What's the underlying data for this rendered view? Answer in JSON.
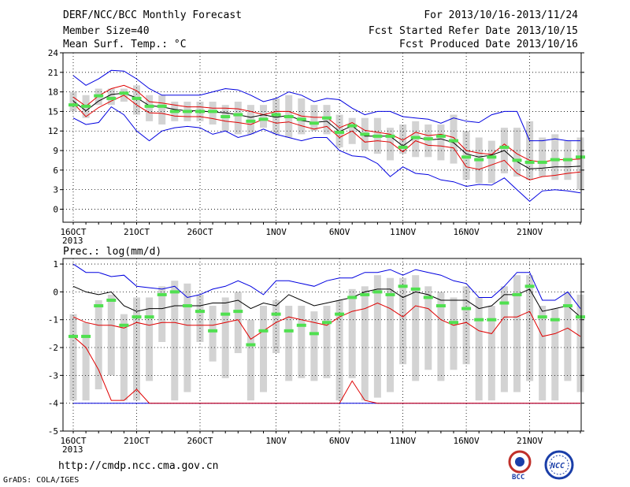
{
  "header": {
    "left_lines": [
      "DERF/NCC/BCC Monthly Forecast",
      "Member Size=40",
      "Mean Surf. Temp.: °C"
    ],
    "right_lines": [
      "For 2013/10/16-2013/11/24",
      "Fcst Started Refer Date 2013/10/15",
      "Fcst Produced Date 2013/10/16"
    ]
  },
  "footer": {
    "url": "http://cmdp.ncc.cma.gov.cn",
    "credit": "GrADS: COLA/IGES"
  },
  "logos": [
    {
      "name": "bcc-logo",
      "text": "BCC",
      "color": "#c0302a"
    },
    {
      "name": "ncc-logo",
      "text": "NCC",
      "color": "#1a3ea8"
    }
  ],
  "colors": {
    "box": "#d3d3d3",
    "median": "#50e050",
    "mean": "#000000",
    "band": "#e00000",
    "extreme": "#0000e0",
    "grid": "#000000"
  },
  "chart_data": [
    {
      "type": "line",
      "title": "Mean Surf. Temp.: °C",
      "ylim": [
        -2,
        24
      ],
      "yticks": [
        0,
        3,
        6,
        9,
        12,
        15,
        18,
        21,
        24
      ],
      "xtick_labels": [
        {
          "day": 0,
          "label": "16OCT",
          "sub": "2013"
        },
        {
          "day": 5,
          "label": "21OCT"
        },
        {
          "day": 10,
          "label": "26OCT"
        },
        {
          "day": 16,
          "label": "1NOV"
        },
        {
          "day": 21,
          "label": "6NOV"
        },
        {
          "day": 26,
          "label": "11NOV"
        },
        {
          "day": 31,
          "label": "16NOV"
        },
        {
          "day": 36,
          "label": "21NOV"
        }
      ],
      "days": 40,
      "series": [
        {
          "role": "max",
          "values": [
            20.5,
            19,
            20,
            21.3,
            21.2,
            20,
            18.5,
            17.5,
            17.5,
            17.5,
            17.5,
            18,
            18.5,
            18.3,
            17.5,
            16.5,
            17,
            18,
            17.5,
            16.5,
            17,
            16.8,
            15.5,
            14.5,
            15,
            15,
            14.2,
            14,
            13.8,
            13.2,
            14,
            13.5,
            13.3,
            14.5,
            15,
            15,
            10.5,
            10.5,
            10.8,
            10.5,
            10.5
          ]
        },
        {
          "role": "upper",
          "values": [
            17.2,
            15.8,
            17.4,
            18.5,
            19,
            18.2,
            16.5,
            16.3,
            16,
            15.7,
            15.7,
            15.5,
            15.5,
            15.4,
            15,
            14.5,
            15,
            15,
            14.3,
            14.1,
            14.1,
            12.5,
            13.3,
            12.1,
            11.8,
            11.5,
            10.6,
            11.8,
            11.3,
            11.5,
            11,
            9,
            8.6,
            8.4,
            10,
            8.5,
            7.5,
            7.2,
            7.6,
            7.6,
            7.7
          ]
        },
        {
          "role": "mean",
          "values": [
            16.6,
            15.1,
            16.6,
            17.6,
            17.8,
            17.1,
            15.9,
            15.7,
            15.3,
            15.1,
            15.1,
            14.9,
            14.8,
            14.5,
            14.1,
            14.5,
            14.1,
            14.4,
            13.6,
            13.3,
            13.5,
            11.9,
            12.8,
            11.2,
            11.2,
            11.2,
            9.7,
            11.1,
            10.6,
            10.8,
            10.2,
            8.5,
            8,
            8.3,
            9,
            7.3,
            6.2,
            6.3,
            6.5,
            6.5,
            6.6
          ]
        },
        {
          "role": "lower",
          "values": [
            16.3,
            14.2,
            15.6,
            16.6,
            17.5,
            16,
            14.8,
            14.7,
            14.3,
            14.2,
            14.2,
            13.9,
            13.5,
            13.3,
            13,
            13.8,
            13.2,
            13.4,
            12.8,
            12.3,
            12.7,
            11,
            12,
            10.3,
            10.5,
            10.3,
            8.8,
            10.5,
            9.8,
            9.7,
            9.4,
            6.5,
            6.1,
            6.8,
            7.5,
            5.5,
            4.5,
            5,
            5.2,
            5.5,
            5.7
          ]
        },
        {
          "role": "min",
          "values": [
            14,
            13,
            13.3,
            15.7,
            14.5,
            12,
            10.5,
            12,
            12.5,
            12.7,
            12.5,
            11.5,
            12,
            11,
            11.5,
            12.3,
            11.5,
            11,
            10.5,
            11,
            11,
            9,
            8.2,
            8,
            7,
            5,
            6.5,
            5.5,
            5.3,
            4.5,
            4.2,
            3.5,
            3.8,
            3.7,
            4.8,
            3,
            1.2,
            2.8,
            3,
            2.8,
            2.5
          ]
        },
        {
          "role": "median",
          "values": [
            16,
            15.8,
            17.4,
            17,
            17.8,
            17,
            15.8,
            15.8,
            15,
            15,
            15,
            15,
            14.2,
            14.5,
            13.5,
            13.8,
            14.5,
            14.2,
            13.8,
            13.2,
            14,
            11.8,
            12.8,
            11.5,
            11.2,
            11.2,
            9.5,
            11,
            10.8,
            11.2,
            10.5,
            8,
            7.6,
            8,
            9.5,
            7.5,
            7.2,
            7.2,
            7.6,
            7.6,
            8
          ]
        },
        {
          "role": "box_hi",
          "values": [
            18,
            17.5,
            18.5,
            18.5,
            18.5,
            19,
            17.5,
            17.5,
            16.5,
            16.5,
            16.5,
            16.5,
            16,
            16.5,
            16,
            16,
            17,
            17.5,
            17,
            16,
            16,
            14.5,
            14,
            14,
            14,
            12.5,
            13,
            13.5,
            13,
            13,
            14.5,
            12,
            11,
            10.5,
            12.5,
            12.5,
            13.5,
            11,
            11.5,
            10.5,
            11
          ]
        },
        {
          "role": "box_lo",
          "values": [
            15,
            14,
            16,
            16,
            16.5,
            14.5,
            13.5,
            13,
            13.5,
            13.5,
            13.5,
            13,
            12,
            11.5,
            11.5,
            12.5,
            11.5,
            11,
            11.5,
            12,
            11.5,
            9.5,
            10,
            9,
            8.5,
            7.5,
            8.5,
            8,
            8,
            7.5,
            7,
            4.5,
            4,
            4,
            5.5,
            5,
            4.5,
            5,
            4.5,
            4.5,
            3
          ]
        }
      ]
    },
    {
      "type": "line",
      "title": "Prec.: log(mm/d)",
      "ylim": [
        -5,
        1.2
      ],
      "yticks": [
        -5,
        -4,
        -3,
        -2,
        -1,
        0,
        1
      ],
      "xtick_labels": [
        {
          "day": 0,
          "label": "16OCT",
          "sub": "2013"
        },
        {
          "day": 5,
          "label": "21OCT"
        },
        {
          "day": 10,
          "label": "26OCT"
        },
        {
          "day": 16,
          "label": "1NOV"
        },
        {
          "day": 21,
          "label": "6NOV"
        },
        {
          "day": 26,
          "label": "11NOV"
        },
        {
          "day": 31,
          "label": "16NOV"
        },
        {
          "day": 36,
          "label": "21NOV"
        }
      ],
      "days": 40,
      "series": [
        {
          "role": "max",
          "values": [
            1,
            0.7,
            0.7,
            0.55,
            0.6,
            0.2,
            0.15,
            0.1,
            0.2,
            -0.2,
            -0.1,
            0.1,
            0.2,
            0.4,
            0.2,
            -0.1,
            0.4,
            0.4,
            0.3,
            0.2,
            0.4,
            0.5,
            0.5,
            0.7,
            0.7,
            0.8,
            0.6,
            0.8,
            0.7,
            0.6,
            0.4,
            0.3,
            -0.2,
            -0.2,
            0.2,
            0.7,
            0.7,
            -0.3,
            -0.3,
            0,
            -0.6
          ]
        },
        {
          "role": "mean",
          "values": [
            0.2,
            0,
            -0.1,
            0,
            -0.5,
            -0.7,
            -0.6,
            -0.6,
            -0.5,
            -0.5,
            -0.5,
            -0.4,
            -0.4,
            -0.3,
            -0.6,
            -0.4,
            -0.5,
            -0.1,
            -0.3,
            -0.5,
            -0.4,
            -0.3,
            -0.2,
            0,
            0.1,
            0.1,
            -0.2,
            0,
            -0.1,
            -0.3,
            -0.3,
            -0.3,
            -0.6,
            -0.5,
            -0.1,
            -0.1,
            0.1,
            -0.7,
            -0.6,
            -0.5,
            -0.9
          ]
        },
        {
          "role": "lower",
          "values": [
            -1.6,
            -2,
            -2.8,
            -3.9,
            -3.9,
            -3.5,
            -4,
            -4,
            -4,
            -4,
            -4,
            -4,
            -4,
            -4,
            -4,
            -4,
            -4,
            -4,
            -4,
            -4,
            -4,
            -4,
            -3.2,
            -3.9,
            -4,
            -4,
            -4,
            -4,
            -4,
            -4,
            -4,
            -4,
            -4,
            -4,
            -4,
            -4,
            -4,
            -4,
            -4,
            -4,
            -4
          ]
        },
        {
          "role": "band",
          "values": [
            -0.9,
            -1.1,
            -1.2,
            -1.2,
            -1.3,
            -1.1,
            -1.2,
            -1.1,
            -1.1,
            -1.2,
            -1.2,
            -1.2,
            -1.1,
            -1,
            -1.7,
            -1.4,
            -1.1,
            -0.9,
            -1,
            -1.1,
            -1.2,
            -0.9,
            -0.7,
            -0.6,
            -0.4,
            -0.6,
            -0.9,
            -0.5,
            -0.6,
            -1,
            -1.2,
            -1.1,
            -1.4,
            -1.5,
            -0.9,
            -0.9,
            -0.7,
            -1.6,
            -1.5,
            -1.3,
            -1.6
          ]
        },
        {
          "role": "min",
          "values": [
            -4,
            -4,
            -4,
            -4,
            -4,
            -4,
            -4,
            -4,
            -4,
            -4,
            -4,
            -4,
            -4,
            -4,
            -4,
            -4,
            -4,
            -4,
            -4,
            -4,
            -4,
            -4,
            -4,
            -4,
            -4,
            -4,
            -4,
            -4,
            -4,
            -4,
            -4,
            -4,
            -4,
            -4,
            -4,
            -4,
            -4,
            -4,
            -4,
            -4,
            -4
          ]
        },
        {
          "role": "median",
          "values": [
            -1.6,
            -1.6,
            -0.5,
            -0.3,
            -1.2,
            -0.9,
            -0.9,
            -0.1,
            0,
            -0.5,
            -0.7,
            -1.4,
            -0.8,
            -0.7,
            -1.9,
            -1.4,
            -0.8,
            -1.4,
            -1.2,
            -1.5,
            -1.1,
            -0.8,
            -0.2,
            -0.1,
            0,
            -0.1,
            0.2,
            0.1,
            -0.2,
            -0.5,
            -1.1,
            -0.6,
            -1,
            -1,
            -0.4,
            -0.1,
            0.2,
            -0.9,
            -1,
            -0.5,
            -0.9
          ]
        },
        {
          "role": "box_hi",
          "values": [
            -0.8,
            -1.1,
            -0.3,
            -0.1,
            -0.8,
            -0.2,
            -0.2,
            0.2,
            0.4,
            0.3,
            -0.1,
            -0.5,
            -0.2,
            0,
            -1,
            -0.5,
            -0.3,
            -0.5,
            -0.5,
            -0.7,
            -0.5,
            -0.3,
            0.1,
            0.2,
            0.6,
            0.5,
            0.5,
            0.6,
            0.2,
            0,
            -0.2,
            0.2,
            -0.2,
            -0.5,
            0.2,
            0.6,
            0.6,
            -0.5,
            -0.6,
            0,
            -0.1
          ]
        },
        {
          "role": "box_lo",
          "values": [
            -3.9,
            -3.9,
            -3.5,
            -3,
            -3.9,
            -3.9,
            -3.2,
            -1.8,
            -3.9,
            -3.6,
            -1.8,
            -2.5,
            -3.1,
            -2.2,
            -3.9,
            -3.6,
            -2.2,
            -3.2,
            -3.1,
            -3.2,
            -3.1,
            -3.9,
            -3.1,
            -3.9,
            -3.8,
            -3.6,
            -2.6,
            -3.2,
            -2.8,
            -3.2,
            -2.8,
            -2.6,
            -3.9,
            -3.9,
            -3.6,
            -3.6,
            -3.2,
            -3.9,
            -3.9,
            -3.2,
            -3.6
          ]
        }
      ]
    }
  ]
}
